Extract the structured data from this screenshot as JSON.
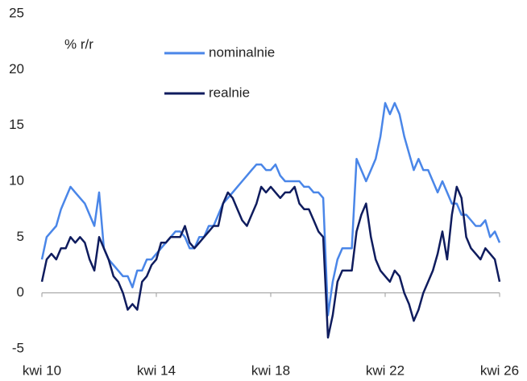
{
  "chart_data": {
    "type": "line",
    "annotation": "% r/r",
    "categories": [
      "kwi 10",
      null,
      null,
      null,
      null,
      null,
      null,
      null,
      null,
      null,
      null,
      null,
      null,
      null,
      null,
      null,
      null,
      null,
      null,
      null,
      null,
      null,
      null,
      null,
      "kwi 14",
      null,
      null,
      null,
      null,
      null,
      null,
      null,
      null,
      null,
      null,
      null,
      null,
      null,
      null,
      null,
      null,
      null,
      null,
      null,
      null,
      null,
      null,
      null,
      "kwi 18",
      null,
      null,
      null,
      null,
      null,
      null,
      null,
      null,
      null,
      null,
      null,
      null,
      null,
      null,
      null,
      null,
      null,
      null,
      null,
      null,
      null,
      null,
      null,
      "kwi 22",
      null,
      null,
      null,
      null,
      null,
      null,
      null,
      null,
      null,
      null,
      null,
      null,
      null,
      null,
      null,
      null,
      null,
      null,
      null,
      null,
      null,
      null,
      null,
      "kwi 26"
    ],
    "series": [
      {
        "name": "nominalnie",
        "color": "#4a86e8",
        "values": [
          3,
          5,
          5.5,
          6,
          7.5,
          8.5,
          9.5,
          9,
          8.5,
          8,
          7,
          6,
          9,
          4,
          3,
          2.5,
          2,
          1.5,
          1.5,
          0.5,
          2,
          2,
          3,
          3,
          3.5,
          4,
          4.5,
          5,
          5.5,
          5.5,
          5,
          4,
          4,
          5,
          5,
          6,
          6,
          7,
          8,
          8.5,
          9,
          9.5,
          10,
          10.5,
          11,
          11.5,
          11.5,
          11,
          11,
          11.5,
          10.5,
          10,
          10,
          10,
          10,
          9.5,
          9.5,
          9,
          9,
          8.5,
          -2,
          1,
          3,
          4,
          4,
          4,
          12,
          11,
          10,
          11,
          12,
          14,
          17,
          16,
          17,
          16,
          14,
          12.5,
          11,
          12,
          11,
          11,
          10,
          9,
          10,
          9,
          8,
          8,
          7,
          7,
          6.5,
          6,
          6,
          6.5,
          5,
          5.5,
          4.5
        ]
      },
      {
        "name": "realnie",
        "color": "#0f1c5e",
        "values": [
          1,
          3,
          3.5,
          3,
          4,
          4,
          5,
          4.5,
          5,
          4.5,
          3,
          2,
          5,
          4,
          3,
          1.5,
          1,
          0,
          -1.5,
          -1,
          -1.5,
          1,
          1.5,
          2.5,
          3,
          4.5,
          4.5,
          5,
          5,
          5,
          6,
          4.5,
          4,
          4.5,
          5,
          5.5,
          6,
          6,
          8,
          9,
          8.5,
          7.5,
          6.5,
          6,
          7,
          8,
          9.5,
          9,
          9.5,
          9,
          8.5,
          9,
          9,
          9.5,
          8,
          7.5,
          7.5,
          6.5,
          5.5,
          5,
          -4,
          -2,
          1,
          2,
          2,
          2,
          5.5,
          7,
          8,
          5,
          3,
          2,
          1.5,
          1,
          2,
          1.5,
          0,
          -1,
          -2.5,
          -1.5,
          0,
          1,
          2,
          3.5,
          5.5,
          3,
          7,
          9.5,
          8.5,
          5,
          4,
          3.5,
          3,
          4,
          3.5,
          3,
          1
        ]
      }
    ],
    "ylim": [
      -5,
      25
    ],
    "yticks": [
      -5,
      0,
      5,
      10,
      15,
      20,
      25
    ],
    "grid": false
  }
}
